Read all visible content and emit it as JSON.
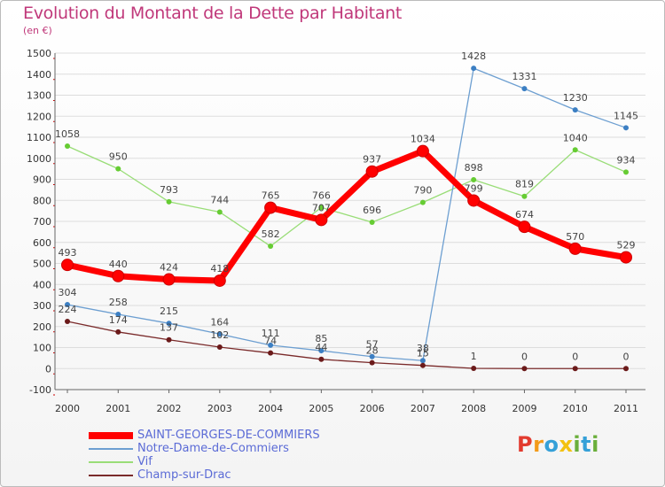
{
  "header": {
    "title": "Evolution du Montant de la Dette par Habitant",
    "subtitle": "(en €)"
  },
  "logo": {
    "text": "Proxiti",
    "letters": [
      {
        "ch": "P",
        "color": "#e23b2f"
      },
      {
        "ch": "r",
        "color": "#f39b1a"
      },
      {
        "ch": "o",
        "color": "#35a0d8"
      },
      {
        "ch": "x",
        "color": "#f3c10f"
      },
      {
        "ch": "i",
        "color": "#6aaf3b"
      },
      {
        "ch": "t",
        "color": "#35a0d8"
      },
      {
        "ch": "i",
        "color": "#6aaf3b"
      }
    ]
  },
  "chart_data": {
    "type": "line",
    "title": "Evolution du Montant de la Dette par Habitant",
    "ylabel": "(en €)",
    "xlabel": "",
    "x": [
      "2000",
      "2001",
      "2002",
      "2003",
      "2004",
      "2005",
      "2006",
      "2007",
      "2008",
      "2009",
      "2010",
      "2011"
    ],
    "ylim": [
      -100,
      1500
    ],
    "yticks": [
      -100,
      0,
      100,
      200,
      300,
      400,
      500,
      600,
      700,
      800,
      900,
      1000,
      1100,
      1200,
      1300,
      1400,
      1500
    ],
    "grid": "horizontal",
    "legend_position": "bottom-left",
    "series": [
      {
        "name": "SAINT-GEORGES-DE-COMMIERS",
        "color": "#ff0000",
        "point_color": "#e00000",
        "values": [
          493,
          440,
          424,
          418,
          765,
          707,
          937,
          1034,
          799,
          674,
          570,
          529
        ]
      },
      {
        "name": "Notre-Dame-de-Commiers",
        "color": "#6d9fd1",
        "point_color": "#3c7fc3",
        "values": [
          304,
          258,
          215,
          164,
          111,
          85,
          57,
          38,
          1428,
          1331,
          1230,
          1145
        ]
      },
      {
        "name": "Vif",
        "color": "#99dd77",
        "point_color": "#66cc33",
        "values": [
          1058,
          950,
          793,
          744,
          582,
          766,
          696,
          790,
          898,
          819,
          1040,
          934
        ]
      },
      {
        "name": "Champ-sur-Drac",
        "color": "#7a2a2a",
        "point_color": "#6b1a1a",
        "values": [
          224,
          174,
          137,
          102,
          74,
          44,
          28,
          15,
          1,
          0,
          0,
          0
        ]
      }
    ]
  }
}
